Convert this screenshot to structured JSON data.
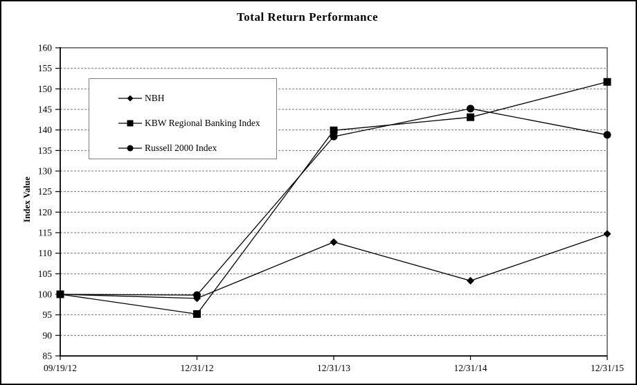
{
  "title": "Total Return Performance",
  "chart_data": {
    "type": "line",
    "title": "Total Return Performance",
    "xlabel": "",
    "ylabel": "Index Value",
    "ylim": [
      85,
      160
    ],
    "ytick_step": 5,
    "yticks": [
      85,
      90,
      95,
      100,
      105,
      110,
      115,
      120,
      125,
      130,
      135,
      140,
      145,
      150,
      155,
      160
    ],
    "grid": "horizontal-dashed",
    "legend_position": "upper-left-inside",
    "categories": [
      "09/19/12",
      "12/31/12",
      "12/31/13",
      "12/31/14",
      "12/31/15"
    ],
    "series": [
      {
        "name": "NBH",
        "marker": "diamond",
        "values": [
          100,
          99.0,
          112.7,
          103.3,
          114.7
        ]
      },
      {
        "name": "KBW Regional Banking Index",
        "marker": "square",
        "values": [
          100,
          95.2,
          139.9,
          143.1,
          151.7
        ]
      },
      {
        "name": "Russell 2000 Index",
        "marker": "circle",
        "values": [
          100,
          99.8,
          138.4,
          145.2,
          138.8
        ]
      }
    ],
    "colors": {
      "series": "#000000",
      "grid": "#777777",
      "axis": "#000000",
      "legend_border": "#808080",
      "background": "#ffffff"
    }
  }
}
